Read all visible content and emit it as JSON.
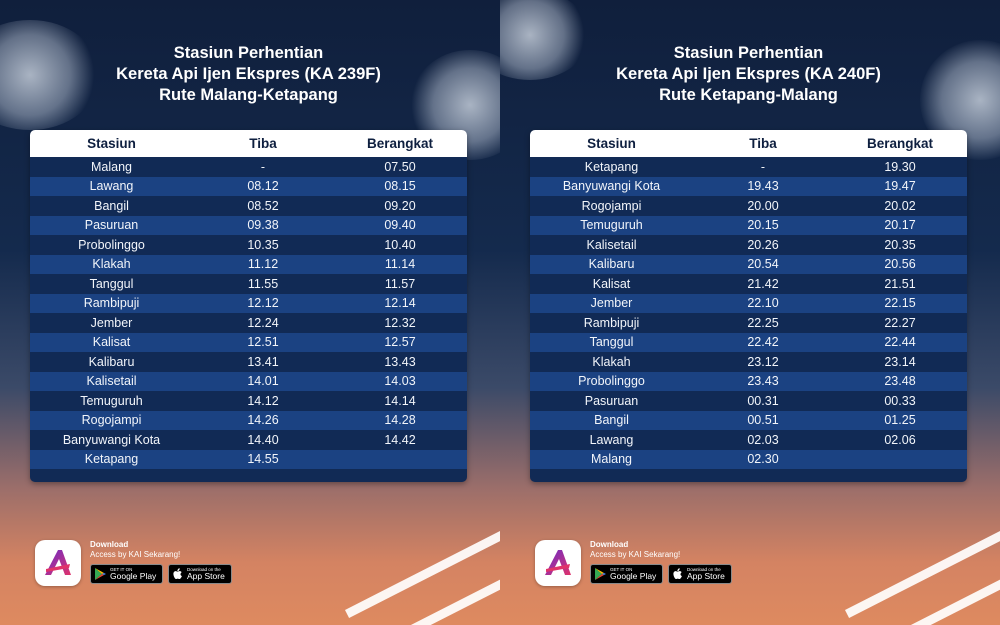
{
  "left": {
    "title": [
      "Stasiun Perhentian",
      "Kereta Api Ijen Ekspres (KA 239F)",
      "Rute Malang-Ketapang"
    ],
    "headers": [
      "Stasiun",
      "Tiba",
      "Berangkat"
    ],
    "rows": [
      [
        "Malang",
        "-",
        "07.50"
      ],
      [
        "Lawang",
        "08.12",
        "08.15"
      ],
      [
        "Bangil",
        "08.52",
        "09.20"
      ],
      [
        "Pasuruan",
        "09.38",
        "09.40"
      ],
      [
        "Probolinggo",
        "10.35",
        "10.40"
      ],
      [
        "Klakah",
        "11.12",
        "11.14"
      ],
      [
        "Tanggul",
        "11.55",
        "11.57"
      ],
      [
        "Rambipuji",
        "12.12",
        "12.14"
      ],
      [
        "Jember",
        "12.24",
        "12.32"
      ],
      [
        "Kalisat",
        "12.51",
        "12.57"
      ],
      [
        "Kalibaru",
        "13.41",
        "13.43"
      ],
      [
        "Kalisetail",
        "14.01",
        "14.03"
      ],
      [
        "Temuguruh",
        "14.12",
        "14.14"
      ],
      [
        "Rogojampi",
        "14.26",
        "14.28"
      ],
      [
        "Banyuwangi Kota",
        "14.40",
        "14.42"
      ],
      [
        "Ketapang",
        "14.55",
        ""
      ]
    ]
  },
  "right": {
    "title": [
      "Stasiun Perhentian",
      "Kereta Api Ijen Ekspres (KA 240F)",
      "Rute Ketapang-Malang"
    ],
    "headers": [
      "Stasiun",
      "Tiba",
      "Berangkat"
    ],
    "rows": [
      [
        "Ketapang",
        "-",
        "19.30"
      ],
      [
        "Banyuwangi Kota",
        "19.43",
        "19.47"
      ],
      [
        "Rogojampi",
        "20.00",
        "20.02"
      ],
      [
        "Temuguruh",
        "20.15",
        "20.17"
      ],
      [
        "Kalisetail",
        "20.26",
        "20.35"
      ],
      [
        "Kalibaru",
        "20.54",
        "20.56"
      ],
      [
        "Kalisat",
        "21.42",
        "21.51"
      ],
      [
        "Jember",
        "22.10",
        "22.15"
      ],
      [
        "Rambipuji",
        "22.25",
        "22.27"
      ],
      [
        "Tanggul",
        "22.42",
        "22.44"
      ],
      [
        "Klakah",
        "23.12",
        "23.14"
      ],
      [
        "Probolinggo",
        "23.43",
        "23.48"
      ],
      [
        "Pasuruan",
        "00.31",
        "00.33"
      ],
      [
        "Bangil",
        "00.51",
        "01.25"
      ],
      [
        "Lawang",
        "02.03",
        "02.06"
      ],
      [
        "Malang",
        "02.30",
        ""
      ]
    ]
  },
  "promo": {
    "download": "Download",
    "access": "Access by KAI Sekarang!",
    "google_small": "GET IT ON",
    "google_big": "Google Play",
    "apple_small": "Download on the",
    "apple_big": "App Store"
  },
  "colors": {
    "table_dark_row": "#112a55",
    "table_light_row": "#1b4282",
    "header_bg": "#ffffff",
    "accent_purple": "#6a2cc8",
    "accent_pink": "#e0336b"
  }
}
